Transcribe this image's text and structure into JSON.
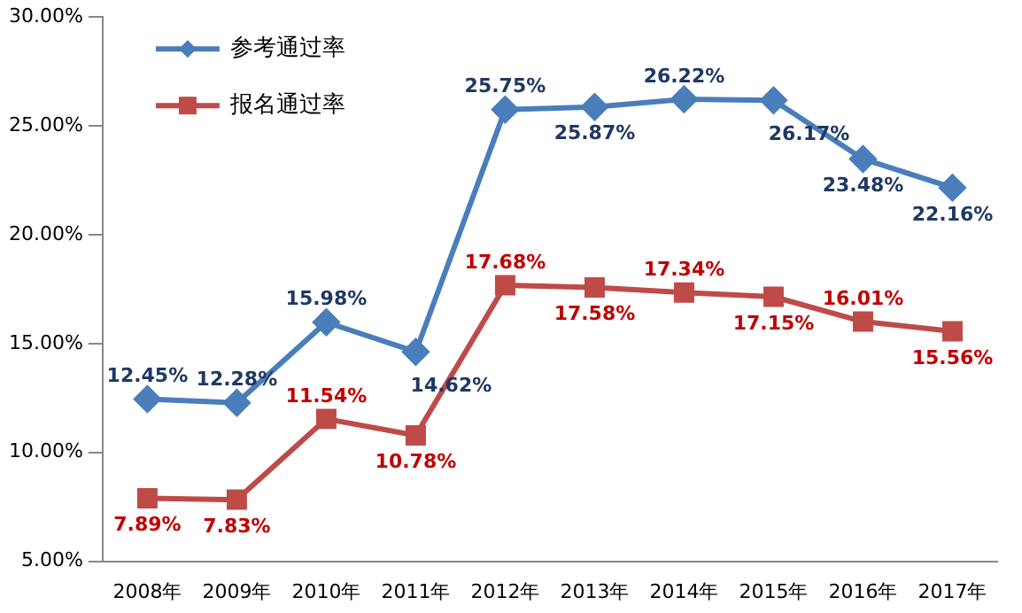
{
  "chart_data": {
    "type": "line",
    "categories": [
      "2008年",
      "2009年",
      "2010年",
      "2011年",
      "2012年",
      "2013年",
      "2014年",
      "2015年",
      "2016年",
      "2017年"
    ],
    "series": [
      {
        "name": "参考通过率",
        "color": "#4a7ebb",
        "marker": "diamond",
        "values": [
          12.45,
          12.28,
          15.98,
          14.62,
          25.75,
          25.87,
          26.22,
          26.17,
          23.48,
          22.16
        ],
        "value_labels": [
          "12.45%",
          "12.28%",
          "15.98%",
          "14.62%",
          "25.75%",
          "25.87%",
          "26.22%",
          "26.17%",
          "23.48%",
          "22.16%"
        ]
      },
      {
        "name": "报名通过率",
        "color": "#be4b48",
        "marker": "square",
        "values": [
          7.89,
          7.83,
          11.54,
          10.78,
          17.68,
          17.58,
          17.34,
          17.15,
          16.01,
          15.56
        ],
        "value_labels": [
          "7.89%",
          "7.83%",
          "11.54%",
          "10.78%",
          "17.68%",
          "17.58%",
          "17.34%",
          "17.15%",
          "16.01%",
          "15.56%"
        ]
      }
    ],
    "ylim": [
      5,
      30
    ],
    "yticks": [
      {
        "value": 5,
        "label": "5.00%"
      },
      {
        "value": 10,
        "label": "10.00%"
      },
      {
        "value": 15,
        "label": "15.00%"
      },
      {
        "value": 20,
        "label": "20.00%"
      },
      {
        "value": 25,
        "label": "25.00%"
      },
      {
        "value": 30,
        "label": "30.00%"
      }
    ],
    "legend": "top left",
    "grid": false,
    "line_style": "solid"
  }
}
